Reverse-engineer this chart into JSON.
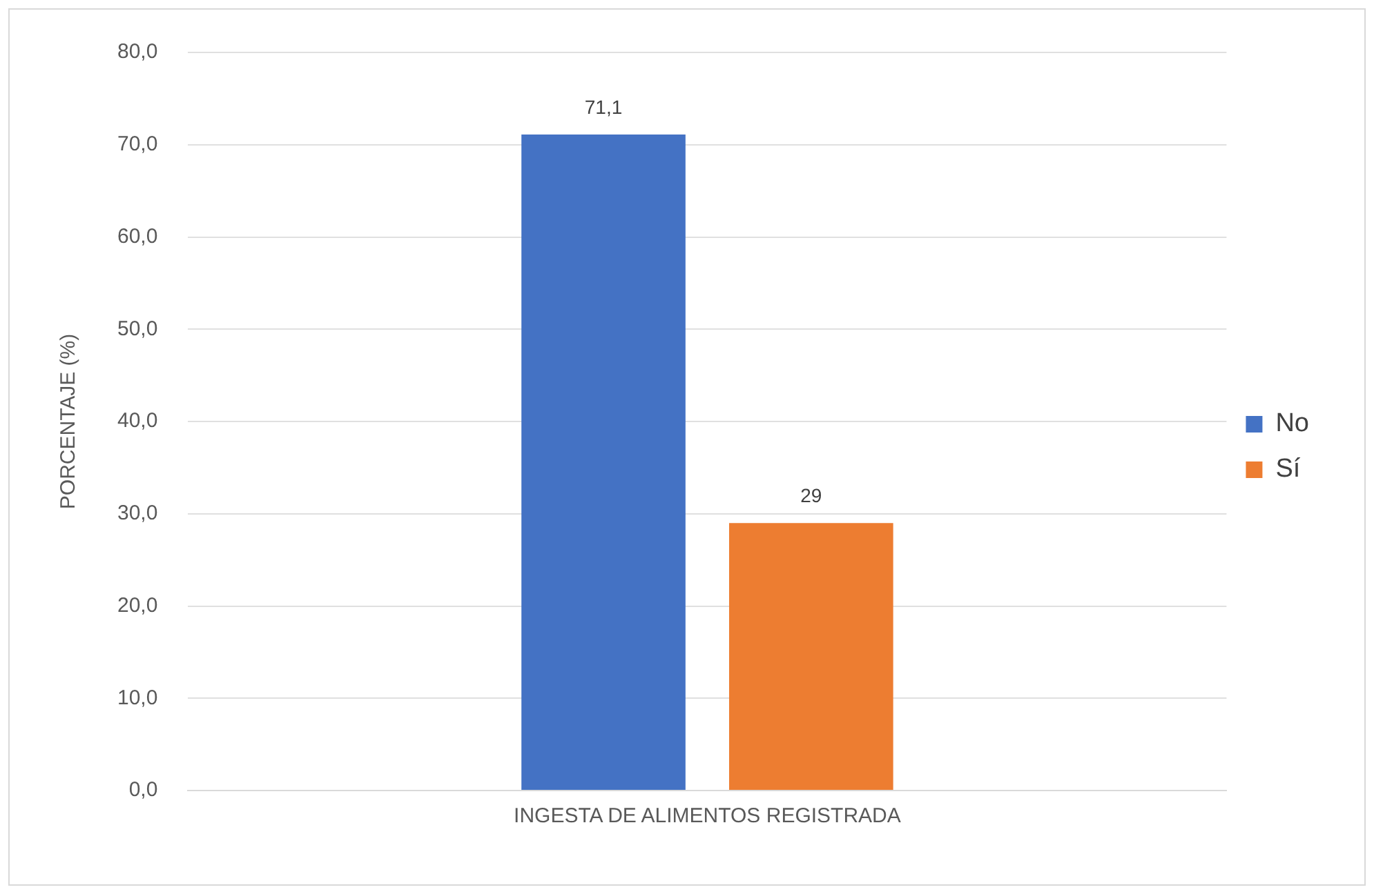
{
  "chart_data": {
    "type": "bar",
    "ylabel": "PORCENTAJE (%)",
    "categories": [
      "INGESTA DE ALIMENTOS REGISTRADA"
    ],
    "series": [
      {
        "name": "No",
        "color": "#4472c4",
        "values": [
          71.1
        ],
        "value_labels": [
          "71,1"
        ]
      },
      {
        "name": "Sí",
        "color": "#ed7d31",
        "values": [
          29
        ],
        "value_labels": [
          "29"
        ]
      }
    ],
    "ylim": [
      0,
      80
    ],
    "yticks": [
      {
        "value": 0,
        "label": "0,0"
      },
      {
        "value": 10,
        "label": "10,0"
      },
      {
        "value": 20,
        "label": "20,0"
      },
      {
        "value": 30,
        "label": "30,0"
      },
      {
        "value": 40,
        "label": "40,0"
      },
      {
        "value": 50,
        "label": "50,0"
      },
      {
        "value": 60,
        "label": "60,0"
      },
      {
        "value": 70,
        "label": "70,0"
      },
      {
        "value": 80,
        "label": "80,0"
      }
    ],
    "grid": "y",
    "legend": "right"
  }
}
